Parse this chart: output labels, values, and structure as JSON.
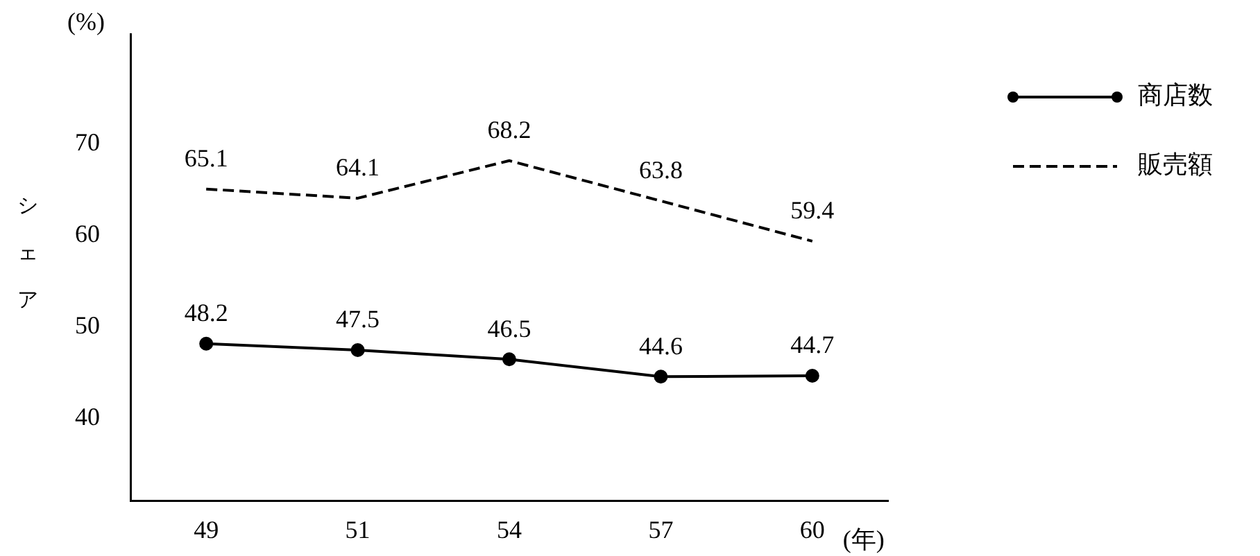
{
  "chart_data": {
    "type": "line",
    "xlabel": "(年)",
    "ylabel": "シェア",
    "annotations": [
      "(%)"
    ],
    "categories": [
      "49",
      "51",
      "54",
      "57",
      "60"
    ],
    "series": [
      {
        "name": "商店数",
        "color": "#000000",
        "values": [
          48.2,
          47.5,
          46.5,
          44.6,
          44.7
        ],
        "marker": "circle",
        "line_style": "solid"
      },
      {
        "name": "販売額",
        "color": "#000000",
        "values": [
          65.1,
          64.1,
          68.2,
          63.8,
          59.4
        ],
        "marker": "none",
        "line_style": "dashed"
      }
    ],
    "ylim": [
      31,
      82
    ],
    "yticks": [
      40,
      50,
      60,
      70
    ],
    "grid": false,
    "legend": "right",
    "data_labels": true
  }
}
